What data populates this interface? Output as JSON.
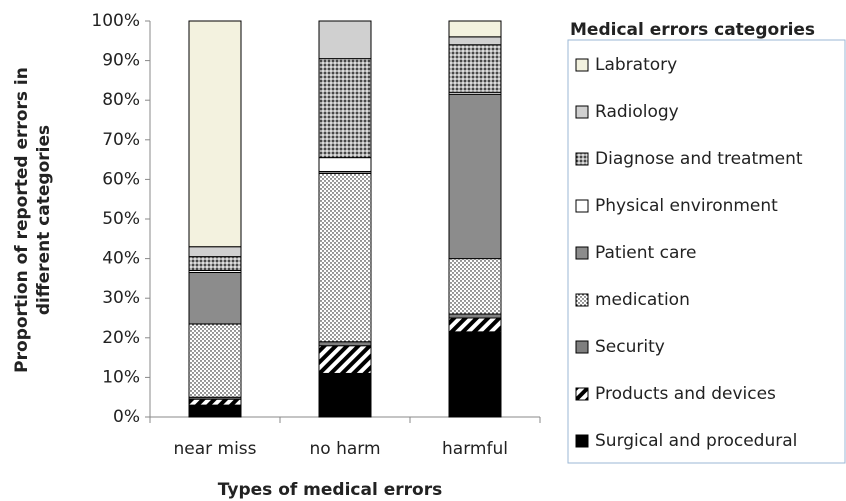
{
  "chart_data": {
    "type": "stacked_bar",
    "x_label": "Types of medical errors",
    "y_label": [
      "Proportion of reported errors in",
      "different categories"
    ],
    "legend_title": "Medical errors categories",
    "legend_position": "right",
    "categories": [
      "near miss",
      "no harm",
      "harmful"
    ],
    "ylim": [
      0,
      100
    ],
    "yticks": [
      {
        "value": 0,
        "label": "0%"
      },
      {
        "value": 10,
        "label": "10%"
      },
      {
        "value": 20,
        "label": "20%"
      },
      {
        "value": 30,
        "label": "30%"
      },
      {
        "value": 40,
        "label": "40%"
      },
      {
        "value": 50,
        "label": "50%"
      },
      {
        "value": 60,
        "label": "60%"
      },
      {
        "value": 70,
        "label": "70%"
      },
      {
        "value": 80,
        "label": "80%"
      },
      {
        "value": 90,
        "label": "90%"
      },
      {
        "value": 100,
        "label": "100%"
      }
    ],
    "series": [
      {
        "name": "Surgical and procedural",
        "color": "#000000",
        "pattern": "solid",
        "values": [
          3,
          11,
          21.5
        ]
      },
      {
        "name": "Products and devices",
        "color": "#000000",
        "pattern": "stripes",
        "values": [
          1.5,
          7,
          3.5
        ]
      },
      {
        "name": "Security",
        "color": "#7f7f7f",
        "pattern": "solid",
        "values": [
          0.5,
          1,
          1
        ]
      },
      {
        "name": "medication",
        "color": "#000000",
        "pattern": "dots",
        "values": [
          18.5,
          42.5,
          14
        ]
      },
      {
        "name": "Patient care",
        "color": "#8c8c8c",
        "pattern": "solid",
        "values": [
          13,
          0.5,
          41.5
        ]
      },
      {
        "name": "Physical environment",
        "color": "#ffffff",
        "pattern": "solid",
        "values": [
          0.5,
          3.5,
          0.5
        ]
      },
      {
        "name": "Diagnose and treatment",
        "color": "#000000",
        "pattern": "crossdots",
        "values": [
          3.5,
          25,
          12
        ]
      },
      {
        "name": "Radiology",
        "color": "#d0d0d0",
        "pattern": "solid",
        "values": [
          2.5,
          9.5,
          2
        ]
      },
      {
        "name": "Labratory",
        "color": "#f3f2df",
        "pattern": "solid",
        "values": [
          57,
          0,
          4
        ]
      }
    ]
  }
}
